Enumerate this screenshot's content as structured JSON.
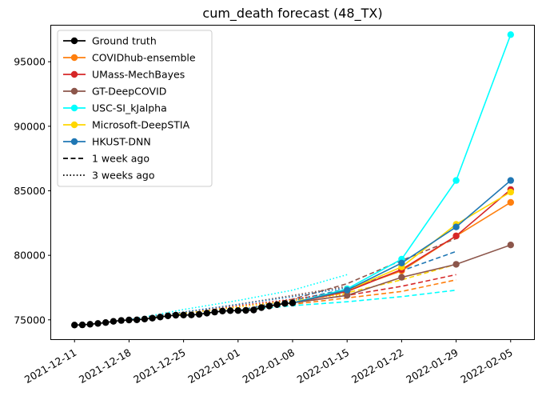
{
  "chart_data": {
    "type": "line",
    "title": "cum_death forecast (48_TX)",
    "xlabel": "",
    "ylabel": "",
    "x_ticks": [
      "2021-12-11",
      "2021-12-18",
      "2021-12-25",
      "2022-01-01",
      "2022-01-08",
      "2022-01-15",
      "2022-01-22",
      "2022-01-29",
      "2022-02-05"
    ],
    "y_ticks": [
      75000,
      80000,
      85000,
      90000,
      95000
    ],
    "xlim": [
      "2021-12-08",
      "2022-02-08"
    ],
    "ylim": [
      73500,
      97800
    ],
    "grid": false,
    "legend_position": "top-left",
    "legend": [
      {
        "label": "Ground truth",
        "color": "#000000",
        "style": "solid-marker"
      },
      {
        "label": "COVIDhub-ensemble",
        "color": "#ff7f0e",
        "style": "solid-marker"
      },
      {
        "label": "UMass-MechBayes",
        "color": "#d62728",
        "style": "solid-marker"
      },
      {
        "label": "GT-DeepCOVID",
        "color": "#8c564b",
        "style": "solid-marker"
      },
      {
        "label": "USC-SI_kJalpha",
        "color": "#00ffff",
        "style": "solid-marker"
      },
      {
        "label": "Microsoft-DeepSTIA",
        "color": "#ffd700",
        "style": "solid-marker"
      },
      {
        "label": "HKUST-DNN",
        "color": "#1f77b4",
        "style": "solid-marker"
      },
      {
        "label": "1 week ago",
        "color": "#000000",
        "style": "dashed"
      },
      {
        "label": "3 weeks ago",
        "color": "#000000",
        "style": "dotted"
      }
    ],
    "ground_truth": {
      "name": "Ground truth",
      "color": "#000000",
      "points": [
        [
          "2021-12-11",
          74600
        ],
        [
          "2021-12-12",
          74610
        ],
        [
          "2021-12-13",
          74660
        ],
        [
          "2021-12-14",
          74720
        ],
        [
          "2021-12-15",
          74790
        ],
        [
          "2021-12-16",
          74880
        ],
        [
          "2021-12-17",
          74950
        ],
        [
          "2021-12-18",
          74990
        ],
        [
          "2021-12-19",
          75000
        ],
        [
          "2021-12-20",
          75060
        ],
        [
          "2021-12-21",
          75130
        ],
        [
          "2021-12-22",
          75220
        ],
        [
          "2021-12-23",
          75310
        ],
        [
          "2021-12-24",
          75360
        ],
        [
          "2021-12-25",
          75370
        ],
        [
          "2021-12-26",
          75380
        ],
        [
          "2021-12-27",
          75430
        ],
        [
          "2021-12-28",
          75520
        ],
        [
          "2021-12-29",
          75600
        ],
        [
          "2021-12-30",
          75680
        ],
        [
          "2021-12-31",
          75710
        ],
        [
          "2022-01-01",
          75720
        ],
        [
          "2022-01-02",
          75730
        ],
        [
          "2022-01-03",
          75760
        ],
        [
          "2022-01-04",
          75950
        ],
        [
          "2022-01-05",
          76070
        ],
        [
          "2022-01-06",
          76180
        ],
        [
          "2022-01-07",
          76270
        ],
        [
          "2022-01-08",
          76310
        ]
      ]
    },
    "forecasts": [
      {
        "name": "COVIDhub-ensemble",
        "color": "#ff7f0e",
        "points": [
          [
            "2022-01-08",
            76310
          ],
          [
            "2022-01-15",
            77300
          ],
          [
            "2022-01-22",
            78800
          ],
          [
            "2022-01-29",
            81500
          ],
          [
            "2022-02-05",
            84100
          ]
        ]
      },
      {
        "name": "UMass-MechBayes",
        "color": "#d62728",
        "points": [
          [
            "2022-01-08",
            76310
          ],
          [
            "2022-01-15",
            77200
          ],
          [
            "2022-01-22",
            78900
          ],
          [
            "2022-01-29",
            81500
          ],
          [
            "2022-02-05",
            85100
          ]
        ]
      },
      {
        "name": "GT-DeepCOVID",
        "color": "#8c564b",
        "points": [
          [
            "2022-01-08",
            76310
          ],
          [
            "2022-01-15",
            76900
          ],
          [
            "2022-01-22",
            78300
          ],
          [
            "2022-01-29",
            79300
          ],
          [
            "2022-02-05",
            80800
          ]
        ]
      },
      {
        "name": "USC-SI_kJalpha",
        "color": "#00ffff",
        "points": [
          [
            "2022-01-08",
            76310
          ],
          [
            "2022-01-15",
            77400
          ],
          [
            "2022-01-22",
            79700
          ],
          [
            "2022-01-29",
            85800
          ],
          [
            "2022-02-05",
            97100
          ]
        ]
      },
      {
        "name": "Microsoft-DeepSTIA",
        "color": "#ffd700",
        "points": [
          [
            "2022-01-08",
            76310
          ],
          [
            "2022-01-15",
            77300
          ],
          [
            "2022-01-22",
            79100
          ],
          [
            "2022-01-29",
            82400
          ],
          [
            "2022-02-05",
            84900
          ]
        ]
      },
      {
        "name": "HKUST-DNN",
        "color": "#1f77b4",
        "points": [
          [
            "2022-01-08",
            76310
          ],
          [
            "2022-01-15",
            77300
          ],
          [
            "2022-01-22",
            79400
          ],
          [
            "2022-01-29",
            82200
          ],
          [
            "2022-02-05",
            85800
          ]
        ]
      }
    ],
    "one_week_ago": [
      {
        "name": "COVIDhub-ensemble",
        "color": "#ff7f0e",
        "points": [
          [
            "2022-01-01",
            75720
          ],
          [
            "2022-01-08",
            76200
          ],
          [
            "2022-01-15",
            76700
          ],
          [
            "2022-01-22",
            77200
          ],
          [
            "2022-01-29",
            78100
          ]
        ]
      },
      {
        "name": "UMass-MechBayes",
        "color": "#d62728",
        "points": [
          [
            "2022-01-01",
            75720
          ],
          [
            "2022-01-08",
            76300
          ],
          [
            "2022-01-15",
            76900
          ],
          [
            "2022-01-22",
            77600
          ],
          [
            "2022-01-29",
            78500
          ]
        ]
      },
      {
        "name": "GT-DeepCOVID",
        "color": "#8c564b",
        "points": [
          [
            "2022-01-01",
            75720
          ],
          [
            "2022-01-08",
            76600
          ],
          [
            "2022-01-15",
            77800
          ],
          [
            "2022-01-22",
            79600
          ],
          [
            "2022-01-29",
            81300
          ]
        ]
      },
      {
        "name": "USC-SI_kJalpha",
        "color": "#00ffff",
        "points": [
          [
            "2022-01-01",
            75720
          ],
          [
            "2022-01-08",
            76100
          ],
          [
            "2022-01-15",
            76400
          ],
          [
            "2022-01-22",
            76800
          ],
          [
            "2022-01-29",
            77300
          ]
        ]
      },
      {
        "name": "Microsoft-DeepSTIA",
        "color": "#ffd700",
        "points": [
          [
            "2022-01-01",
            75720
          ],
          [
            "2022-01-08",
            76400
          ],
          [
            "2022-01-15",
            77100
          ],
          [
            "2022-01-22",
            78100
          ],
          [
            "2022-01-29",
            79300
          ]
        ]
      },
      {
        "name": "HKUST-DNN",
        "color": "#1f77b4",
        "points": [
          [
            "2022-01-01",
            75720
          ],
          [
            "2022-01-08",
            76500
          ],
          [
            "2022-01-15",
            77400
          ],
          [
            "2022-01-22",
            78800
          ],
          [
            "2022-01-29",
            80300
          ]
        ]
      }
    ],
    "three_weeks_ago": [
      {
        "name": "COVIDhub-ensemble",
        "color": "#ff7f0e",
        "points": [
          [
            "2021-12-18",
            75000
          ],
          [
            "2021-12-25",
            75500
          ],
          [
            "2022-01-01",
            76000
          ],
          [
            "2022-01-08",
            76500
          ],
          [
            "2022-01-15",
            77000
          ]
        ]
      },
      {
        "name": "UMass-MechBayes",
        "color": "#d62728",
        "points": [
          [
            "2021-12-18",
            75000
          ],
          [
            "2021-12-25",
            75500
          ],
          [
            "2022-01-01",
            76100
          ],
          [
            "2022-01-08",
            76600
          ],
          [
            "2022-01-15",
            77200
          ]
        ]
      },
      {
        "name": "GT-DeepCOVID",
        "color": "#8c564b",
        "points": [
          [
            "2021-12-18",
            75000
          ],
          [
            "2021-12-25",
            75600
          ],
          [
            "2022-01-01",
            76200
          ],
          [
            "2022-01-08",
            76900
          ],
          [
            "2022-01-15",
            77600
          ]
        ]
      },
      {
        "name": "USC-SI_kJalpha",
        "color": "#00ffff",
        "points": [
          [
            "2021-12-18",
            75000
          ],
          [
            "2021-12-25",
            75800
          ],
          [
            "2022-01-01",
            76500
          ],
          [
            "2022-01-08",
            77300
          ],
          [
            "2022-01-15",
            78500
          ]
        ]
      },
      {
        "name": "Microsoft-DeepSTIA",
        "color": "#ffd700",
        "points": [
          [
            "2021-12-18",
            75000
          ],
          [
            "2021-12-25",
            75500
          ],
          [
            "2022-01-01",
            76000
          ],
          [
            "2022-01-08",
            76500
          ],
          [
            "2022-01-15",
            77000
          ]
        ]
      },
      {
        "name": "HKUST-DNN",
        "color": "#1f77b4",
        "points": [
          [
            "2021-12-18",
            75000
          ],
          [
            "2021-12-25",
            75600
          ],
          [
            "2022-01-01",
            76200
          ],
          [
            "2022-01-08",
            76800
          ],
          [
            "2022-01-15",
            77500
          ]
        ]
      }
    ]
  }
}
